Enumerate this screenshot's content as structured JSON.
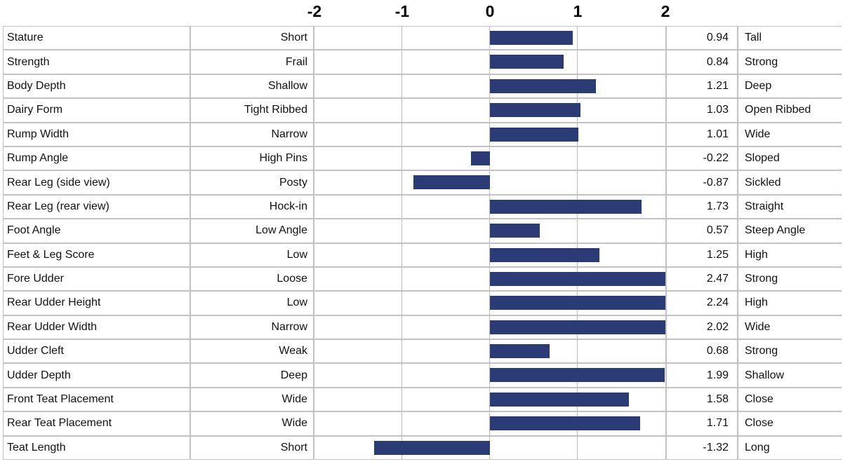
{
  "chart_data": {
    "type": "bar",
    "orientation": "horizontal",
    "title": "",
    "xlabel": "",
    "ylabel": "",
    "x_ticks": [
      -2,
      -1,
      0,
      1,
      2
    ],
    "xlim": [
      -2,
      2
    ],
    "grid": true,
    "legend": "none",
    "bar_color": "#2a3b75",
    "grid_color": "#bfbfbf",
    "rows": [
      {
        "trait": "Stature",
        "low": "Short",
        "value": 0.94,
        "high": "Tall"
      },
      {
        "trait": "Strength",
        "low": "Frail",
        "value": 0.84,
        "high": "Strong"
      },
      {
        "trait": "Body Depth",
        "low": "Shallow",
        "value": 1.21,
        "high": "Deep"
      },
      {
        "trait": "Dairy Form",
        "low": "Tight Ribbed",
        "value": 1.03,
        "high": "Open Ribbed"
      },
      {
        "trait": "Rump Width",
        "low": "Narrow",
        "value": 1.01,
        "high": "Wide"
      },
      {
        "trait": "Rump Angle",
        "low": "High Pins",
        "value": -0.22,
        "high": "Sloped"
      },
      {
        "trait": "Rear Leg (side view)",
        "low": "Posty",
        "value": -0.87,
        "high": "Sickled"
      },
      {
        "trait": "Rear Leg (rear view)",
        "low": "Hock-in",
        "value": 1.73,
        "high": "Straight"
      },
      {
        "trait": "Foot Angle",
        "low": "Low Angle",
        "value": 0.57,
        "high": "Steep Angle"
      },
      {
        "trait": "Feet & Leg Score",
        "low": "Low",
        "value": 1.25,
        "high": "High"
      },
      {
        "trait": "Fore Udder",
        "low": "Loose",
        "value": 2.47,
        "high": "Strong"
      },
      {
        "trait": "Rear Udder Height",
        "low": "Low",
        "value": 2.24,
        "high": "High"
      },
      {
        "trait": "Rear Udder Width",
        "low": "Narrow",
        "value": 2.02,
        "high": "Wide"
      },
      {
        "trait": "Udder Cleft",
        "low": "Weak",
        "value": 0.68,
        "high": "Strong"
      },
      {
        "trait": "Udder Depth",
        "low": "Deep",
        "value": 1.99,
        "high": "Shallow"
      },
      {
        "trait": "Front Teat Placement",
        "low": "Wide",
        "value": 1.58,
        "high": "Close"
      },
      {
        "trait": "Rear Teat Placement",
        "low": "Wide",
        "value": 1.71,
        "high": "Close"
      },
      {
        "trait": "Teat Length",
        "low": "Short",
        "value": -1.32,
        "high": "Long"
      }
    ]
  }
}
